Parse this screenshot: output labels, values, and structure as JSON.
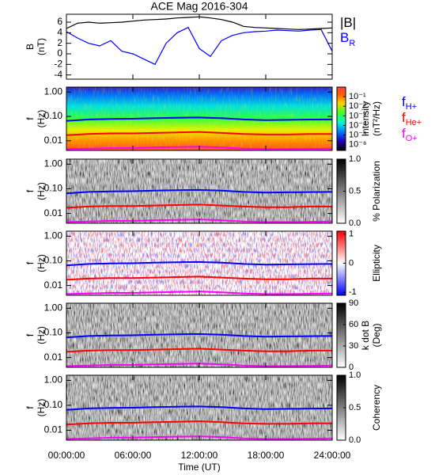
{
  "chart_data": [
    {
      "type": "line",
      "title": "ACE Mag 2016-304",
      "ylabel_lines": [
        "B",
        "(nT)"
      ],
      "x": [
        0,
        1,
        2,
        3,
        4,
        5,
        6,
        7,
        8,
        9,
        10,
        11,
        12,
        13,
        14,
        15,
        16,
        17,
        18,
        19,
        20,
        21,
        22,
        23,
        24
      ],
      "series": [
        {
          "name": "|B|",
          "color": "#000000",
          "values": [
            4.8,
            5.8,
            6.0,
            5.8,
            5.9,
            6.0,
            6.2,
            6.4,
            6.5,
            6.6,
            6.8,
            6.9,
            7.0,
            6.8,
            6.5,
            6.0,
            5.2,
            5.0,
            4.9,
            4.8,
            4.7,
            4.6,
            4.7,
            4.8,
            4.9
          ]
        },
        {
          "name": "B",
          "subscript": "R",
          "color": "#0000ff",
          "values": [
            4.2,
            3.0,
            2.0,
            1.5,
            2.5,
            0.5,
            0,
            -1,
            -2,
            2,
            4,
            5,
            1,
            -0.5,
            2.5,
            3.5,
            4,
            4.2,
            4.3,
            4.5,
            4.4,
            4.3,
            4.5,
            4.6,
            0.5
          ]
        }
      ],
      "xlim": [
        0,
        24
      ],
      "xticks": [
        0,
        6,
        12,
        18,
        24
      ],
      "ylim": [
        -4.8,
        7.5
      ],
      "yticks": [
        -4,
        -2,
        0,
        2,
        4,
        6
      ]
    },
    {
      "type": "spectrogram",
      "ylabel_lines": [
        "f",
        "(Hz)"
      ],
      "log": true,
      "xlim": [
        0,
        24
      ],
      "xticks": [
        0,
        6,
        12,
        18,
        24
      ],
      "ylim": [
        0.004,
        1.6
      ],
      "yticks": [
        {
          "value": 1,
          "label": "1.00"
        },
        {
          "value": 0.1,
          "label": "0.10"
        },
        {
          "value": 0.01,
          "label": "0.01"
        }
      ],
      "colorbar": {
        "label_lines": [
          "Intensity",
          "(nT²/Hz)"
        ],
        "colormap": "rainbow",
        "log": true,
        "zlim": [
          2.5e-07,
          1
        ],
        "ticks": [
          {
            "value": 0.1,
            "label": "10⁻¹"
          },
          {
            "value": 0.01,
            "label": "10⁻²"
          },
          {
            "value": 0.001,
            "label": "10⁻³"
          },
          {
            "value": 0.0001,
            "label": "10⁻⁴"
          },
          {
            "value": 1e-05,
            "label": "10⁻⁵"
          },
          {
            "value": 1e-06,
            "label": "10⁻⁶"
          }
        ]
      },
      "x": [
        0,
        2,
        4,
        6,
        8,
        10,
        12,
        14,
        16,
        18,
        20,
        22,
        24
      ],
      "series": [
        {
          "name": "f",
          "subscript": "H+",
          "color": "#0000ff",
          "values": [
            0.065,
            0.075,
            0.078,
            0.08,
            0.085,
            0.088,
            0.09,
            0.085,
            0.075,
            0.07,
            0.072,
            0.074,
            0.075
          ]
        },
        {
          "name": "f",
          "subscript": "He+",
          "color": "#ff0000",
          "values": [
            0.017,
            0.019,
            0.02,
            0.02,
            0.021,
            0.022,
            0.023,
            0.021,
            0.019,
            0.018,
            0.018,
            0.019,
            0.019
          ]
        },
        {
          "name": "f",
          "subscript": "O+",
          "color": "#ff00ff",
          "values": [
            0.0045,
            0.0047,
            0.005,
            0.005,
            0.0053,
            0.0055,
            0.0057,
            0.0053,
            0.0047,
            0.0045,
            0.0045,
            0.0046,
            0.0047
          ]
        }
      ]
    },
    {
      "type": "spectrogram",
      "ylabel_lines": [
        "f",
        "(Hz)"
      ],
      "log": true,
      "xlim": [
        0,
        24
      ],
      "xticks": [
        0,
        6,
        12,
        18,
        24
      ],
      "ylim": [
        0.004,
        1.6
      ],
      "yticks": [
        {
          "value": 1,
          "label": "1.00"
        },
        {
          "value": 0.1,
          "label": "0.10"
        },
        {
          "value": 0.01,
          "label": "0.01"
        }
      ],
      "colorbar": {
        "label_lines": [
          "% Polarization"
        ],
        "colormap": "gray",
        "zlim": [
          0,
          1
        ],
        "ticks": [
          {
            "value": 1,
            "label": "1.0"
          },
          {
            "value": 0.5,
            "label": "0.5"
          },
          {
            "value": 0,
            "label": "0.0"
          }
        ]
      },
      "x": [
        0,
        2,
        4,
        6,
        8,
        10,
        12,
        14,
        16,
        18,
        20,
        22,
        24
      ],
      "series": [
        {
          "color": "#0000ff",
          "values": [
            0.065,
            0.075,
            0.078,
            0.08,
            0.085,
            0.088,
            0.09,
            0.085,
            0.075,
            0.07,
            0.072,
            0.074,
            0.075
          ]
        },
        {
          "color": "#ff0000",
          "values": [
            0.017,
            0.019,
            0.02,
            0.02,
            0.021,
            0.022,
            0.023,
            0.021,
            0.019,
            0.018,
            0.018,
            0.019,
            0.019
          ]
        },
        {
          "color": "#ff00ff",
          "values": [
            0.0045,
            0.0047,
            0.005,
            0.005,
            0.0053,
            0.0055,
            0.0057,
            0.0053,
            0.0047,
            0.0045,
            0.0045,
            0.0046,
            0.0047
          ]
        }
      ]
    },
    {
      "type": "spectrogram",
      "ylabel_lines": [
        "f",
        "(Hz)"
      ],
      "log": true,
      "xlim": [
        0,
        24
      ],
      "xticks": [
        0,
        6,
        12,
        18,
        24
      ],
      "ylim": [
        0.004,
        1.6
      ],
      "yticks": [
        {
          "value": 1,
          "label": "1.00"
        },
        {
          "value": 0.1,
          "label": "0.10"
        },
        {
          "value": 0.01,
          "label": "0.01"
        }
      ],
      "colorbar": {
        "label_lines": [
          "Ellipticity"
        ],
        "colormap": "bwr",
        "zlim": [
          -1.1,
          1.1
        ],
        "ticks": [
          1,
          0,
          -1
        ]
      },
      "x": [
        0,
        2,
        4,
        6,
        8,
        10,
        12,
        14,
        16,
        18,
        20,
        22,
        24
      ],
      "series": [
        {
          "color": "#0000ff",
          "values": [
            0.065,
            0.075,
            0.078,
            0.08,
            0.085,
            0.088,
            0.09,
            0.085,
            0.075,
            0.07,
            0.072,
            0.074,
            0.075
          ]
        },
        {
          "color": "#ff0000",
          "values": [
            0.017,
            0.019,
            0.02,
            0.02,
            0.021,
            0.022,
            0.023,
            0.021,
            0.019,
            0.018,
            0.018,
            0.019,
            0.019
          ]
        },
        {
          "color": "#ff00ff",
          "values": [
            0.0045,
            0.0047,
            0.005,
            0.005,
            0.0053,
            0.0055,
            0.0057,
            0.0053,
            0.0047,
            0.0045,
            0.0045,
            0.0046,
            0.0047
          ]
        }
      ]
    },
    {
      "type": "spectrogram",
      "ylabel_lines": [
        "f",
        "(Hz)"
      ],
      "log": true,
      "xlim": [
        0,
        24
      ],
      "xticks": [
        0,
        6,
        12,
        18,
        24
      ],
      "ylim": [
        0.004,
        1.6
      ],
      "yticks": [
        {
          "value": 1,
          "label": "1.00"
        },
        {
          "value": 0.1,
          "label": "0.10"
        },
        {
          "value": 0.01,
          "label": "0.01"
        }
      ],
      "colorbar": {
        "label_lines": [
          "k dot B",
          "(Deg)"
        ],
        "colormap": "gray",
        "zlim": [
          0,
          90
        ],
        "ticks": [
          90,
          60,
          30,
          0
        ]
      },
      "x": [
        0,
        2,
        4,
        6,
        8,
        10,
        12,
        14,
        16,
        18,
        20,
        22,
        24
      ],
      "series": [
        {
          "color": "#0000ff",
          "values": [
            0.065,
            0.075,
            0.078,
            0.08,
            0.085,
            0.088,
            0.09,
            0.085,
            0.075,
            0.07,
            0.072,
            0.074,
            0.075
          ]
        },
        {
          "color": "#ff0000",
          "values": [
            0.017,
            0.019,
            0.02,
            0.02,
            0.021,
            0.022,
            0.023,
            0.021,
            0.019,
            0.018,
            0.018,
            0.019,
            0.019
          ]
        },
        {
          "color": "#ff00ff",
          "values": [
            0.0045,
            0.0047,
            0.005,
            0.005,
            0.0053,
            0.0055,
            0.0057,
            0.0053,
            0.0047,
            0.0045,
            0.0045,
            0.0046,
            0.0047
          ]
        }
      ]
    },
    {
      "type": "spectrogram",
      "ylabel_lines": [
        "f",
        "(Hz)"
      ],
      "log": true,
      "xlabel": "Time (UT)",
      "xlim": [
        0,
        24
      ],
      "xticks": [
        {
          "value": 0,
          "label": "00:00:00"
        },
        {
          "value": 6,
          "label": "06:00:00"
        },
        {
          "value": 12,
          "label": "12:00:00"
        },
        {
          "value": 18,
          "label": "18:00:00"
        },
        {
          "value": 24,
          "label": "24:00:00"
        }
      ],
      "ylim": [
        0.004,
        1.6
      ],
      "yticks": [
        {
          "value": 1,
          "label": "1.00"
        },
        {
          "value": 0.1,
          "label": "0.10"
        },
        {
          "value": 0.01,
          "label": "0.01"
        }
      ],
      "colorbar": {
        "label_lines": [
          "Coherency"
        ],
        "colormap": "gray",
        "zlim": [
          0,
          1
        ],
        "ticks": [
          {
            "value": 1,
            "label": "1.0"
          },
          {
            "value": 0.5,
            "label": "0.5"
          },
          {
            "value": 0,
            "label": "0.0"
          }
        ]
      },
      "x": [
        0,
        2,
        4,
        6,
        8,
        10,
        12,
        14,
        16,
        18,
        20,
        22,
        24
      ],
      "series": [
        {
          "color": "#0000ff",
          "values": [
            0.065,
            0.075,
            0.078,
            0.08,
            0.085,
            0.088,
            0.09,
            0.085,
            0.075,
            0.07,
            0.072,
            0.074,
            0.075
          ]
        },
        {
          "color": "#ff0000",
          "values": [
            0.017,
            0.019,
            0.02,
            0.02,
            0.021,
            0.022,
            0.023,
            0.021,
            0.019,
            0.018,
            0.018,
            0.019,
            0.019
          ]
        },
        {
          "color": "#ff00ff",
          "values": [
            0.0045,
            0.0047,
            0.005,
            0.005,
            0.0053,
            0.0055,
            0.0057,
            0.0053,
            0.0047,
            0.0045,
            0.0045,
            0.0046,
            0.0047
          ]
        }
      ]
    }
  ]
}
